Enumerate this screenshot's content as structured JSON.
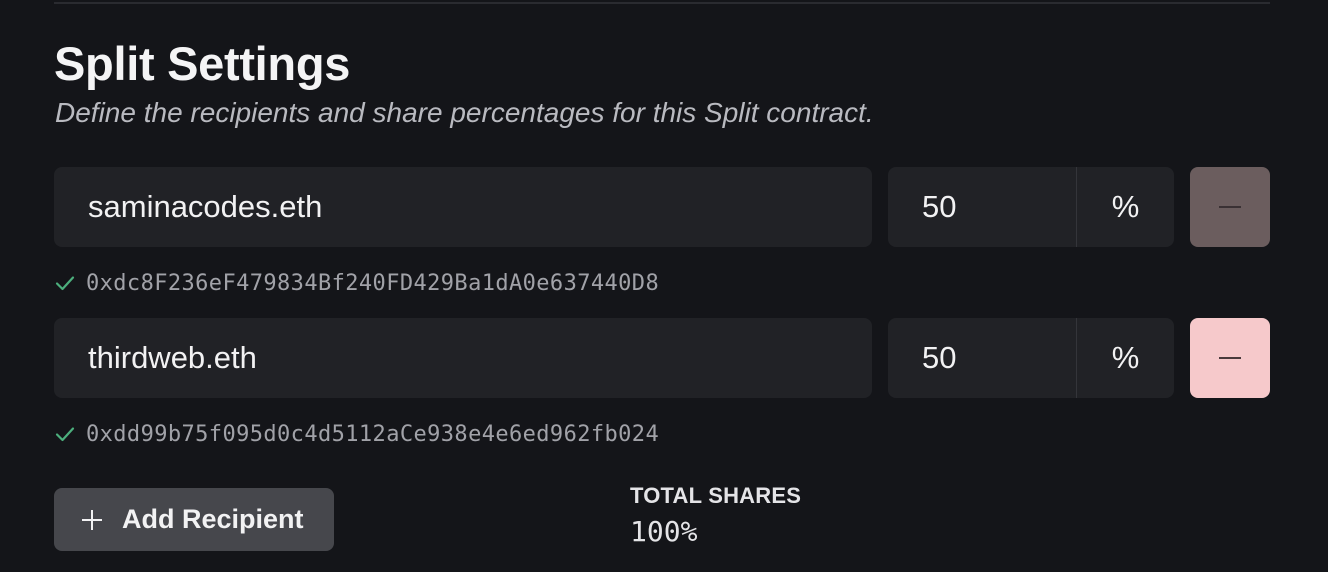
{
  "section": {
    "title": "Split Settings",
    "subtitle": "Define the recipients and share percentages for this Split contract."
  },
  "recipients": [
    {
      "name": "saminacodes.eth",
      "share": "50",
      "unit": "%",
      "address": "0xdc8F236eF479834Bf240FD429Ba1dA0e637440D8",
      "remove_disabled": true
    },
    {
      "name": "thirdweb.eth",
      "share": "50",
      "unit": "%",
      "address": "0xdd99b75f095d0c4d5112aCe938e4e6ed962fb024",
      "remove_disabled": false
    }
  ],
  "add_button": {
    "label": "Add Recipient"
  },
  "totals": {
    "label": "TOTAL SHARES",
    "value": "100%"
  },
  "colors": {
    "background": "#141519",
    "input_background": "#212226",
    "remove_disabled": "#6b5d5e",
    "remove_active": "#f6c9cb",
    "check_green": "#4caf7d"
  },
  "icons": {
    "remove": "minus-icon",
    "verified": "check-icon",
    "add": "plus-icon"
  }
}
